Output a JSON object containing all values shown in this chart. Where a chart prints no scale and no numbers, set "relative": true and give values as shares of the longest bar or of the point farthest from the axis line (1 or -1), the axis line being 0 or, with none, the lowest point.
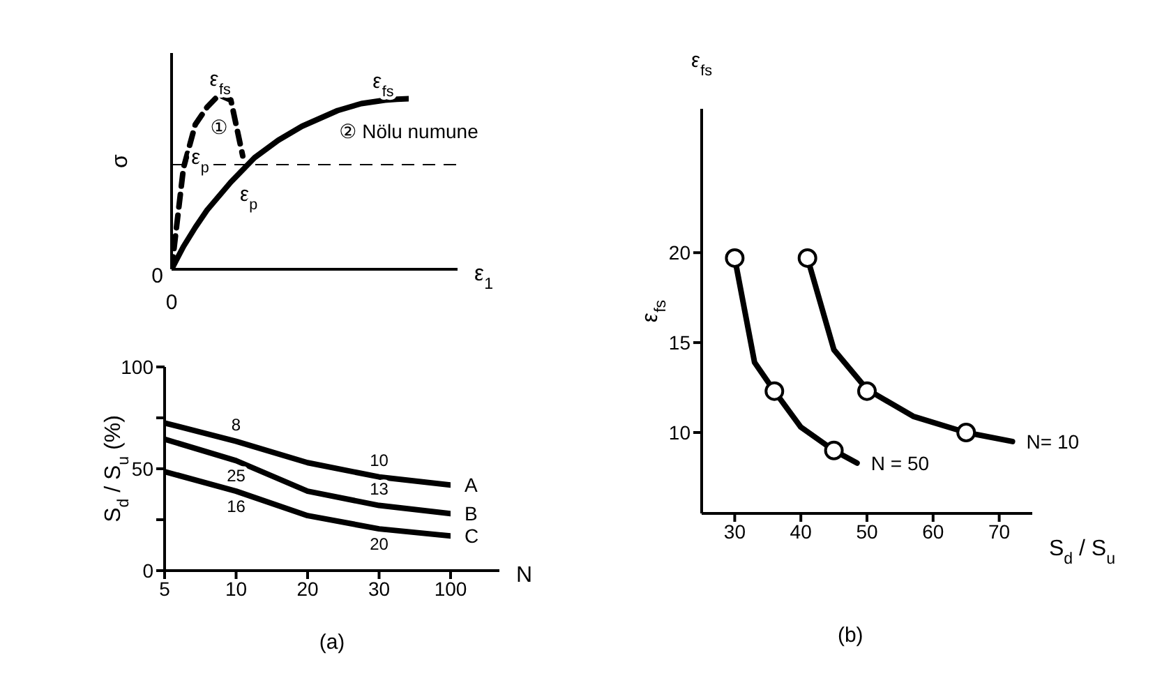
{
  "chart_data": [
    {
      "type": "line",
      "relative": true,
      "xlabel": "ε$_{1}$",
      "ylabel": "σ",
      "marker": "none",
      "categories": [
        null,
        null,
        null,
        null,
        null,
        null,
        null,
        null,
        null,
        null,
        null,
        null,
        null,
        null,
        null,
        null,
        null,
        null,
        null,
        null,
        null
      ],
      "series": [
        {
          "name": "①",
          "color": "#000000",
          "line_style": "dashed",
          "values": [
            0,
            0.58,
            0.83,
            0.93,
            1,
            0.97,
            0.65,
            null,
            null,
            null,
            null,
            null,
            null,
            null,
            null,
            null,
            null,
            null,
            null,
            null,
            null
          ]
        },
        {
          "name": "② Nölu numune",
          "color": "#000000",
          "line_style": "solid",
          "values": [
            0,
            0.13,
            0.24,
            0.34,
            0.42,
            0.5,
            0.57,
            0.64,
            0.69,
            0.74,
            0.78,
            0.82,
            0.85,
            0.88,
            0.91,
            0.93,
            0.95,
            0.96,
            0.97,
            0.975,
            0.978
          ]
        }
      ],
      "ref_lines": [
        {
          "axis": "y",
          "value": 0.6,
          "line_style": "dashed",
          "color": "#000000"
        }
      ],
      "annotations": [
        "0",
        "0",
        "ε$_{fs}$",
        "ε$_{fs}$",
        "ε$_{p}$",
        "ε$_{p}$"
      ]
    },
    {
      "type": "line",
      "categories": [
        "5",
        "10",
        "20",
        "30",
        "100"
      ],
      "xlabel": "N",
      "ylabel": "S$_{d}$ / S$_{u}$ (%)",
      "ylim": [
        0,
        100
      ],
      "yticks": [
        0,
        {
          "value": 25,
          "label": null
        },
        50,
        {
          "value": 75,
          "label": null
        },
        100
      ],
      "marker": "none",
      "series": [
        {
          "name": "A",
          "color": "#000000",
          "values": [
            72.5,
            63.5,
            53,
            46,
            42
          ]
        },
        {
          "name": "B",
          "color": "#000000",
          "values": [
            64.5,
            54,
            39,
            32,
            28
          ]
        },
        {
          "name": "C",
          "color": "#000000",
          "values": [
            48.6,
            39,
            27,
            20.5,
            17
          ]
        }
      ],
      "annotations": [
        "(a)",
        {
          "text": "8",
          "x": "10",
          "y": 63.5
        },
        {
          "text": "10",
          "x": "30",
          "y": 46
        },
        {
          "text": "25",
          "x": "10",
          "y": 54
        },
        {
          "text": "13",
          "x": "30",
          "y": 32
        },
        {
          "text": "16",
          "x": "10",
          "y": 39
        },
        {
          "text": "20",
          "x": "30",
          "y": 20.5
        }
      ]
    },
    {
      "type": "line",
      "xlabel": "S$_{d}$ / S$_{u}$",
      "ylabel": "ε$_{fs}$",
      "xlim": [
        25,
        75
      ],
      "xticks": [
        30,
        40,
        50,
        60,
        70
      ],
      "ylim": [
        5.5,
        28
      ],
      "yticks": [
        10,
        15,
        20
      ],
      "marker": "none",
      "series": [
        {
          "name": "N = 50",
          "color": "#000000",
          "x": [
            30,
            33,
            36,
            40,
            45,
            48.5
          ],
          "values": [
            19.7,
            13.9,
            12.3,
            10.3,
            9,
            8.3
          ]
        },
        {
          "name": "N= 10",
          "color": "#000000",
          "x": [
            41,
            45,
            50,
            57,
            65,
            72
          ],
          "values": [
            19.7,
            14.6,
            12.4,
            10.9,
            10,
            9.5
          ]
        },
        {
          "type": "scatter",
          "marker": "circle",
          "color": "#000000",
          "x": [
            30,
            36,
            45,
            41,
            50,
            65
          ],
          "values": [
            19.7,
            12.3,
            9,
            19.7,
            12.3,
            10
          ]
        }
      ],
      "annotations": [
        "ε$_{fs}$",
        "(b)"
      ]
    }
  ]
}
